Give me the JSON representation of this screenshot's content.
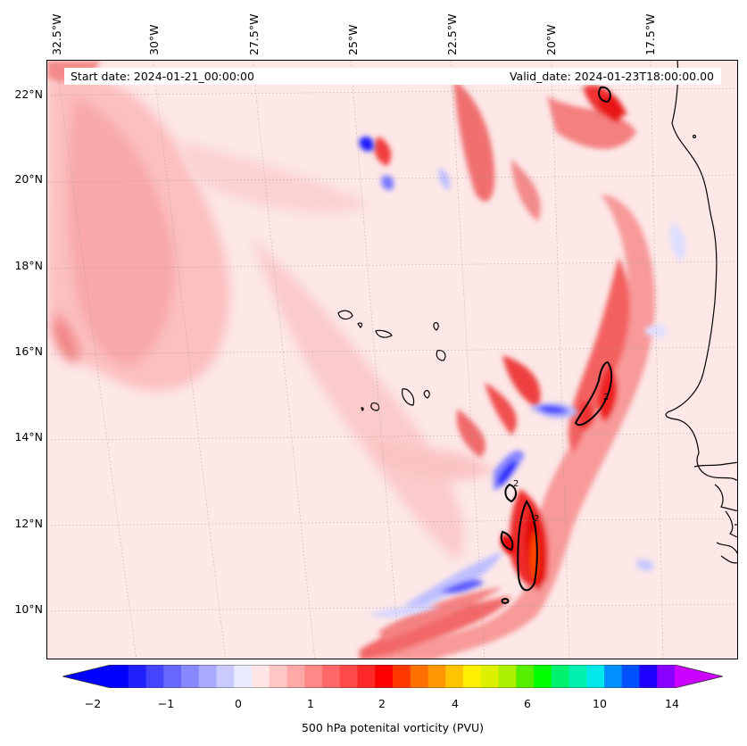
{
  "map": {
    "info": {
      "start_date": "Start date: 2024-01-21_00:00:00",
      "valid_date": "Valid_date: 2024-01-23T18:00:00.00"
    },
    "lon_labels": [
      "32.5°W",
      "30°W",
      "27.5°W",
      "25°W",
      "22.5°W",
      "20°W",
      "17.5°W"
    ],
    "lat_labels": [
      "22°N",
      "20°N",
      "18°N",
      "16°N",
      "14°N",
      "12°N",
      "10°N"
    ],
    "contour_label": "2",
    "colors": {
      "background": "#fde7e7",
      "light_pink": "#fcc9c9",
      "pink": "#f59a9a",
      "red": "#f03a3a",
      "dark_red": "#e00000",
      "orange": "#ff7a00",
      "blue": "#3a3af0",
      "light_blue": "#b0b0ff",
      "coast": "#000000"
    }
  },
  "colorbar": {
    "title": "500 hPa potenital vorticity (PVU)",
    "ticks": [
      "−2",
      "−1",
      "0",
      "1",
      "2",
      "4",
      "6",
      "10",
      "14"
    ],
    "colors": [
      "#0000ff",
      "#2020ff",
      "#4444ff",
      "#6767ff",
      "#8888ff",
      "#a9a9ff",
      "#cacaff",
      "#eaeaff",
      "#ffe6e6",
      "#ffc6c6",
      "#ffa8a8",
      "#ff8888",
      "#ff6868",
      "#ff4848",
      "#ff2828",
      "#ff0000",
      "#ff3800",
      "#ff7000",
      "#ff9800",
      "#ffc400",
      "#fff000",
      "#ddf000",
      "#aaf000",
      "#55f000",
      "#00ff00",
      "#00f070",
      "#00f0b0",
      "#00e8e8",
      "#0090ff",
      "#0050ff",
      "#2000ff",
      "#8800ff"
    ],
    "under_color": "#0000ff",
    "over_color": "#cc00ff"
  }
}
